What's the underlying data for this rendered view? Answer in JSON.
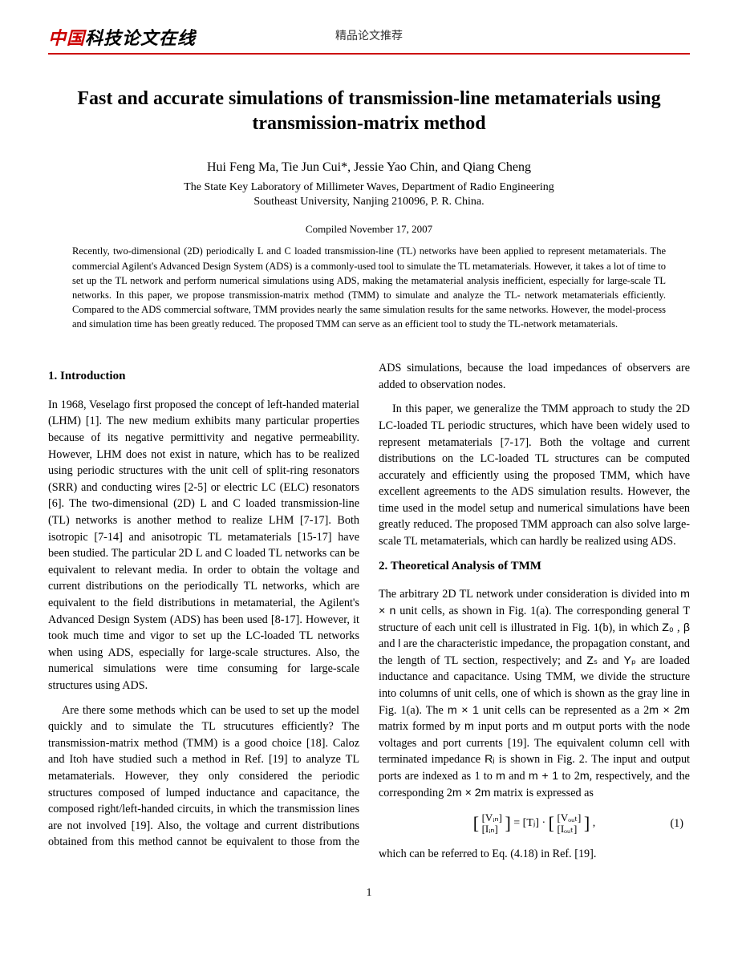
{
  "header": {
    "logo_primary": "中国",
    "logo_secondary": "科技论文在线",
    "center_label": "精品论文推荐"
  },
  "paper": {
    "title": "Fast and accurate simulations of transmission-line metamaterials using transmission-matrix method",
    "authors": "Hui Feng Ma, Tie Jun Cui*, Jessie Yao Chin, and Qiang Cheng",
    "affiliation_line1": "The State Key Laboratory of Millimeter Waves,  Department of Radio Engineering",
    "affiliation_line2": "Southeast University, Nanjing 210096, P. R. China.",
    "date": "Compiled November 17, 2007",
    "abstract": "Recently, two-dimensional (2D) periodically L and C loaded transmission-line (TL) networks have been applied to represent metamaterials. The commercial Agilent's Advanced Design System (ADS) is a commonly-used tool to simulate the TL metamaterials. However, it takes a lot of time to set up the TL network and perform numerical simulations using ADS, making the metamaterial analysis inefficient, especially for large-scale TL networks. In this paper, we propose transmission-matrix method (TMM) to simulate and analyze the TL- network metamaterials efficiently. Compared to the ADS commercial software, TMM provides nearly the same simulation results for the same networks. However, the model-process and simulation time has been greatly reduced. The proposed TMM can serve as an efficient tool to study the TL-network metamaterials."
  },
  "sections": {
    "s1_heading": "1.     Introduction",
    "s1_p1": "In 1968, Veselago first proposed the concept of left-handed material (LHM) [1]. The new medium exhibits many particular properties because of its negative permittivity and negative permeability. However, LHM does not exist in nature, which has to be realized using periodic structures with the unit cell of split-ring resonators (SRR) and conducting wires [2-5] or electric LC (ELC) resonators [6]. The two-dimensional (2D) L and C loaded transmission-line (TL) networks is another method to realize LHM [7-17]. Both isotropic [7-14] and anisotropic TL metamaterials [15-17] have been studied. The particular 2D L and C loaded TL networks can be equivalent to relevant media. In order to obtain the voltage and current distributions on the periodically TL networks, which are equivalent to the field distributions in metamaterial, the Agilent's Advanced Design System (ADS) has been used [8-17]. However, it took much time and vigor to set up the LC-loaded TL networks when using ADS, especially for large-scale structures. Also, the numerical simulations were time consuming for large-scale structures using ADS.",
    "s1_p2": "Are there some methods which can be used to set up the model quickly and to simulate the TL strucutures efficiently? The transmission-matrix method (TMM) is a good choice [18]. Caloz and Itoh have studied such a method in Ref. [19] to analyze TL metamaterials. However, they only considered the periodic structures composed of lumped inductance and capacitance, the composed right/left-handed circuits, in which the transmission lines are not involved [19]. Also, the voltage and current distributions obtained from this method cannot be equivalent to those from the ADS simulations, because the load impedances of observers are added to observation nodes.",
    "s1_p3": "In this paper, we generalize the TMM approach to study the 2D LC-loaded TL periodic structures, which have been widely used to represent metamaterials [7-17]. Both the voltage and current distributions on the LC-loaded TL structures can be computed accurately and efficiently using the proposed TMM, which have excellent agreements to the ADS simulation results. However, the time used in the model setup and numerical simulations have been greatly reduced. The proposed TMM approach can also solve large-scale TL metamaterials, which can hardly be realized using ADS.",
    "s2_heading": "2.    Theoretical Analysis of TMM",
    "s2_p1_a": "The arbitrary 2D TL network under consideration is divided into ",
    "s2_p1_dims": "m × n",
    "s2_p1_b": " unit cells, as shown in Fig. 1(a). The corresponding general T structure of each unit cell is illustrated in Fig. 1(b), in which ",
    "s2_p1_z0": "Z₀",
    "s2_p1_c": " , ",
    "s2_p1_beta": "β",
    "s2_p1_d": " and ",
    "s2_p1_l": "l",
    "s2_p1_e": " are the characteristic impedance, the propagation constant, and the length of TL section, respectively; and ",
    "s2_p1_zs": "Zₛ",
    "s2_p1_f": " and ",
    "s2_p1_yp": "Yₚ",
    "s2_p1_g": " are loaded inductance and capacitance. Using TMM, we divide the structure into columns of unit cells, one of which is shown as the gray line in Fig. 1(a). The ",
    "s2_p1_mx1": "m × 1",
    "s2_p1_h": " unit cells can be represented as a 2",
    "s2_p1_mx2m_a": "m × 2m",
    "s2_p1_i": " matrix formed by ",
    "s2_p1_m1": "m",
    "s2_p1_j": " input ports and ",
    "s2_p1_m2": "m",
    "s2_p1_k": " output ports with the node voltages and port currents [19]. The equivalent column cell with terminated impedance ",
    "s2_p1_rj": "Rⱼ",
    "s2_p1_l2": "  is shown in Fig. 2. The input and output ports are indexed as 1 to ",
    "s2_p1_m3": "m",
    "s2_p1_m_text": " and ",
    "s2_p1_mp1": "m + 1",
    "s2_p1_n": " to 2",
    "s2_p1_m4": "m",
    "s2_p1_o": ", respectively, and the corresponding 2",
    "s2_p1_mx2m_b": "m × 2m",
    "s2_p1_p": " matrix is expressed as",
    "eq1": {
      "vin": "[Vᵢₙ]",
      "iin": "[Iᵢₙ]",
      "eq": " = [Tⱼ] · ",
      "vout": "[Vₒᵤₜ]",
      "iout": "[Iₒᵤₜ]",
      "comma": " ,",
      "num": "(1)"
    },
    "s2_p2": "which can be referred to Eq. (4.18) in Ref. [19]."
  },
  "page_number": "1",
  "colors": {
    "accent": "#c00",
    "text": "#000000",
    "background": "#ffffff"
  }
}
